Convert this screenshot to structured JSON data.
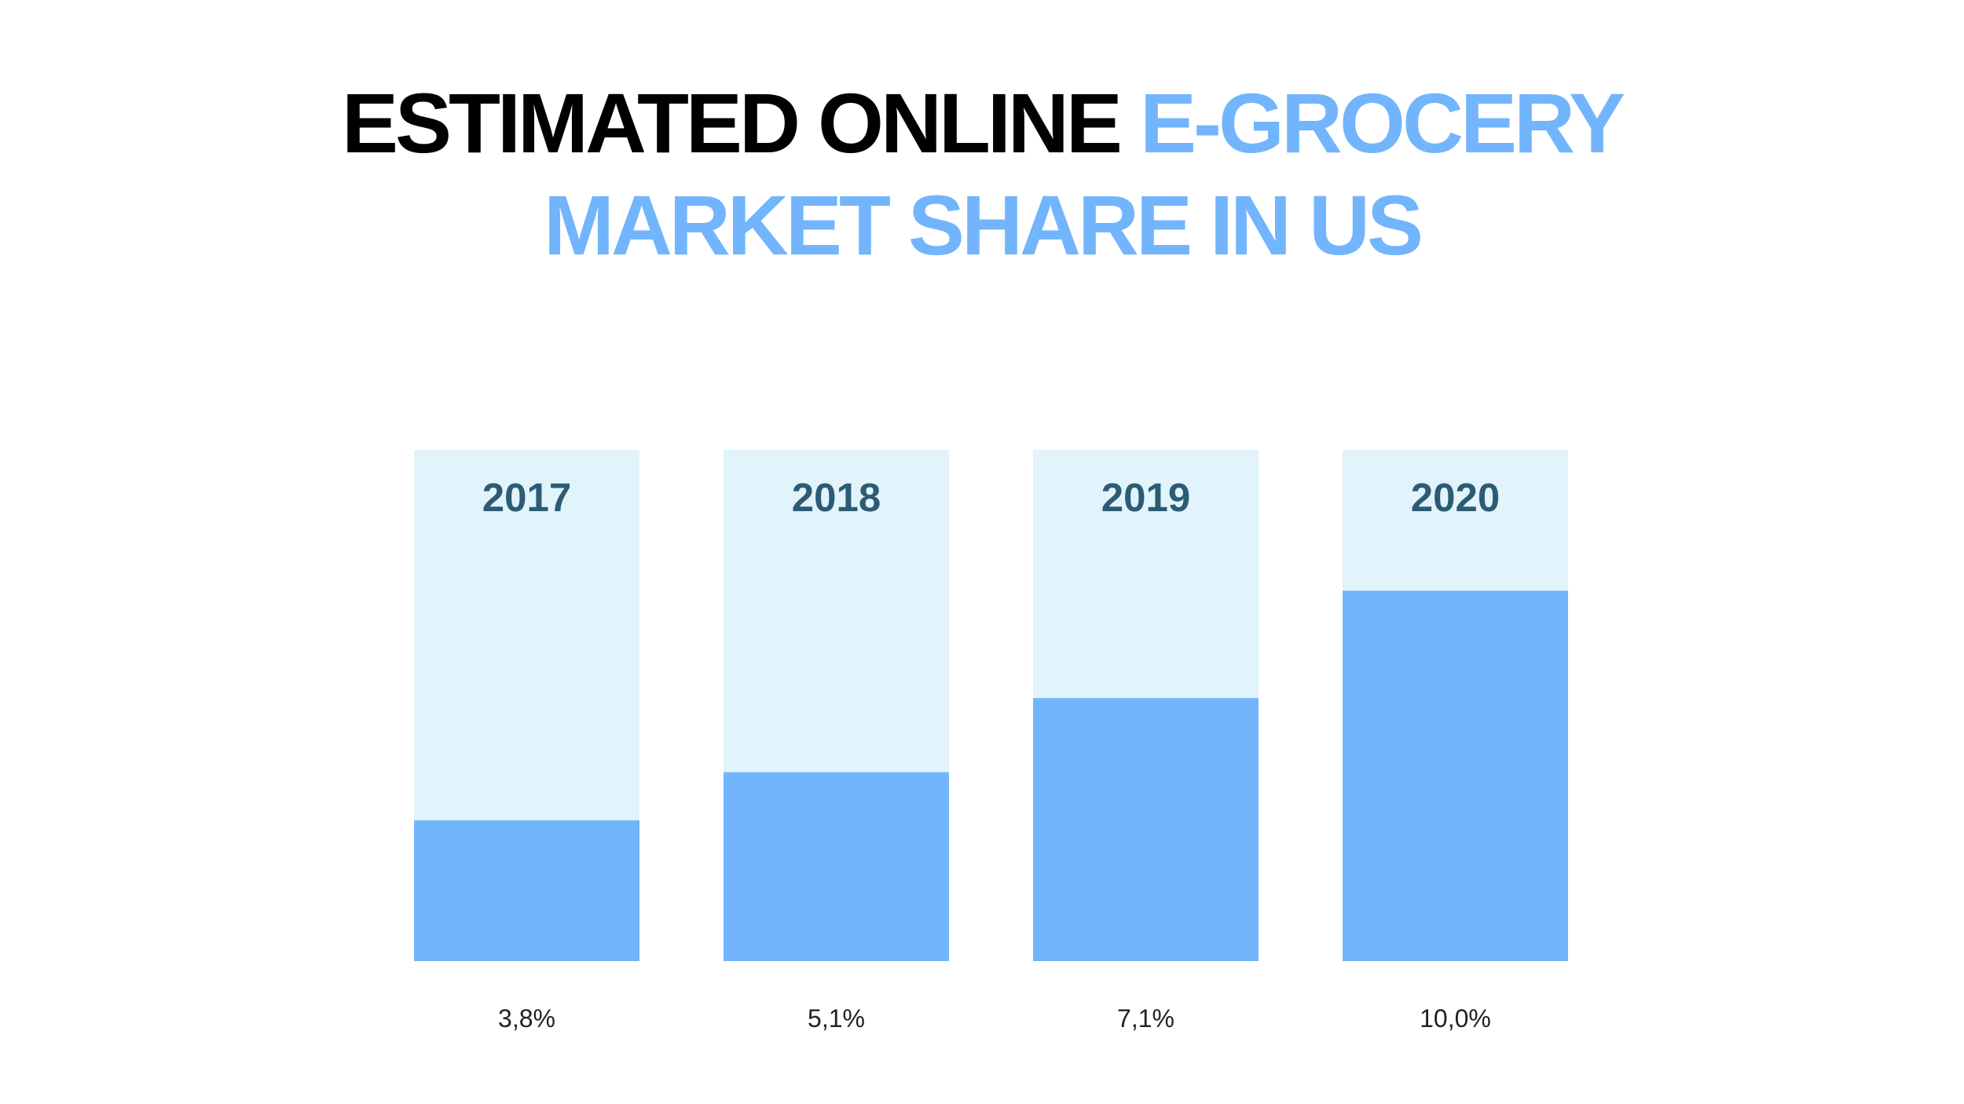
{
  "title": {
    "part1": "ESTIMATED ONLINE ",
    "part2": "E-GROCERY",
    "line2": "MARKET SHARE IN US"
  },
  "colors": {
    "title_dark": "#000000",
    "accent": "#72b5fc",
    "bar_background": "#e1f3fb",
    "bar_fill": "#72b5fc",
    "year_label": "#2d5b74",
    "value_label": "#222222"
  },
  "chart_data": {
    "type": "bar",
    "title": "ESTIMATED ONLINE E-GROCERY MARKET SHARE IN US",
    "categories": [
      "2017",
      "2018",
      "2019",
      "2020"
    ],
    "values": [
      3.8,
      5.1,
      7.1,
      10.0
    ],
    "value_labels": [
      "3,8%",
      "5,1%",
      "7,1%",
      "10,0%"
    ],
    "unit": "%",
    "ylim": [
      0,
      13.8
    ],
    "xlabel": "",
    "ylabel": "",
    "grid": false,
    "legend": "none"
  }
}
